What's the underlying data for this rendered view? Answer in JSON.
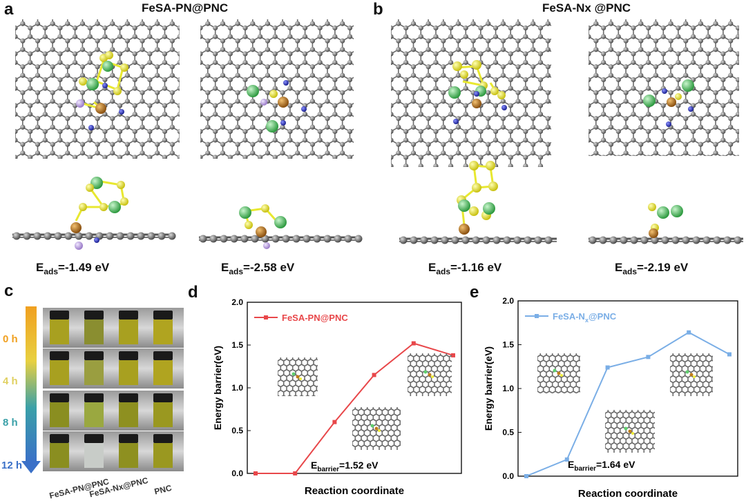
{
  "panels": {
    "a": {
      "label": "a",
      "title": "FeSA-PN@PNC",
      "eads": [
        "-1.49 eV",
        "-2.58 eV"
      ]
    },
    "b": {
      "label": "b",
      "title": "FeSA-Nx @PNC",
      "eads": [
        "-1.16 eV",
        "-2.19 eV"
      ]
    },
    "c": {
      "label": "c",
      "times": [
        "0 h",
        "4 h",
        "8 h",
        "12 h"
      ],
      "samples": [
        "FeSA-PN@PNC",
        "FeSA-Nx@PNC",
        "PNC"
      ]
    },
    "d": {
      "label": "d"
    },
    "e": {
      "label": "e"
    }
  },
  "eads_prefix": "E",
  "eads_sub": "ads",
  "eads_eq": "=",
  "barrier_prefix": "E",
  "barrier_sub": "barrier",
  "colors": {
    "carbon": "#7a7a7a",
    "iron": "#c07d1a",
    "sulfur": "#f0ee3a",
    "chlorine": "#5fcf6e",
    "nitrogen": "#2a35c8",
    "phosphorus": "#c4a6e6",
    "series_d": "#e8474a",
    "series_e": "#7aaee6",
    "time_gradient": [
      "#f0a020",
      "#e8d040",
      "#3aa0a8",
      "#3a70c8"
    ]
  },
  "chart_data": [
    {
      "type": "line",
      "panel": "d",
      "xlabel": "Reaction coordinate",
      "ylabel": "Energy barrier(eV)",
      "ylim": [
        0,
        2.0
      ],
      "yticks": [
        "0.0",
        "0.5",
        "1.0",
        "1.5",
        "2.0"
      ],
      "legend": "top-left",
      "series": [
        {
          "name": "FeSA-PN@PNC",
          "values": [
            0.0,
            0.0,
            0.6,
            1.15,
            1.52,
            1.38
          ]
        }
      ],
      "annotation": "=1.52 eV"
    },
    {
      "type": "line",
      "panel": "e",
      "xlabel": "Reaction coordinate",
      "ylabel": "Energy barrier(eV)",
      "ylim": [
        0,
        2.0
      ],
      "yticks": [
        "0.0",
        "0.5",
        "1.0",
        "1.5",
        "2.0"
      ],
      "legend": "top-left",
      "series": [
        {
          "name": "FeSA-N",
          "name_sub": "x",
          "name_suffix": "@PNC",
          "values": [
            0.0,
            0.19,
            1.24,
            1.36,
            1.64,
            1.39
          ]
        }
      ],
      "annotation": "=1.64 eV"
    }
  ]
}
